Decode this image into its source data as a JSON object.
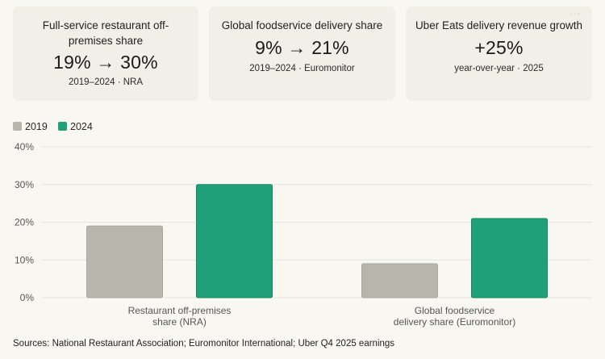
{
  "cards": [
    {
      "title": "Full-service restaurant off-premises share",
      "value": "19% → 30%",
      "sub": "2019–2024 · NRA"
    },
    {
      "title": "Global foodservice delivery share",
      "value": "9% → 21%",
      "sub": "2019–2024 · Euromonitor"
    },
    {
      "title": "Uber Eats delivery revenue growth",
      "value": "+25%",
      "sub": "year-over-year · 2025"
    }
  ],
  "menu_glyph": "···",
  "colors": {
    "series_2019": "#b8b5ad",
    "series_2024": "#1fa078",
    "grid": "#e6e3dc"
  },
  "chart_data": {
    "type": "bar",
    "categories": [
      [
        "Restaurant off-premises",
        "share (NRA)"
      ],
      [
        "Global foodservice",
        "delivery share (Euromonitor)"
      ]
    ],
    "series": [
      {
        "name": "2019",
        "values": [
          19,
          9
        ]
      },
      {
        "name": "2024",
        "values": [
          30,
          21
        ]
      }
    ],
    "ylim": [
      0,
      40
    ],
    "yticks": [
      0,
      10,
      20,
      30,
      40
    ],
    "ytick_labels": [
      "0%",
      "10%",
      "20%",
      "30%",
      "40%"
    ],
    "title": "",
    "xlabel": "",
    "ylabel": "",
    "legend_position": "top-left"
  },
  "source": "Sources: National Restaurant Association; Euromonitor International; Uber Q4 2025 earnings"
}
